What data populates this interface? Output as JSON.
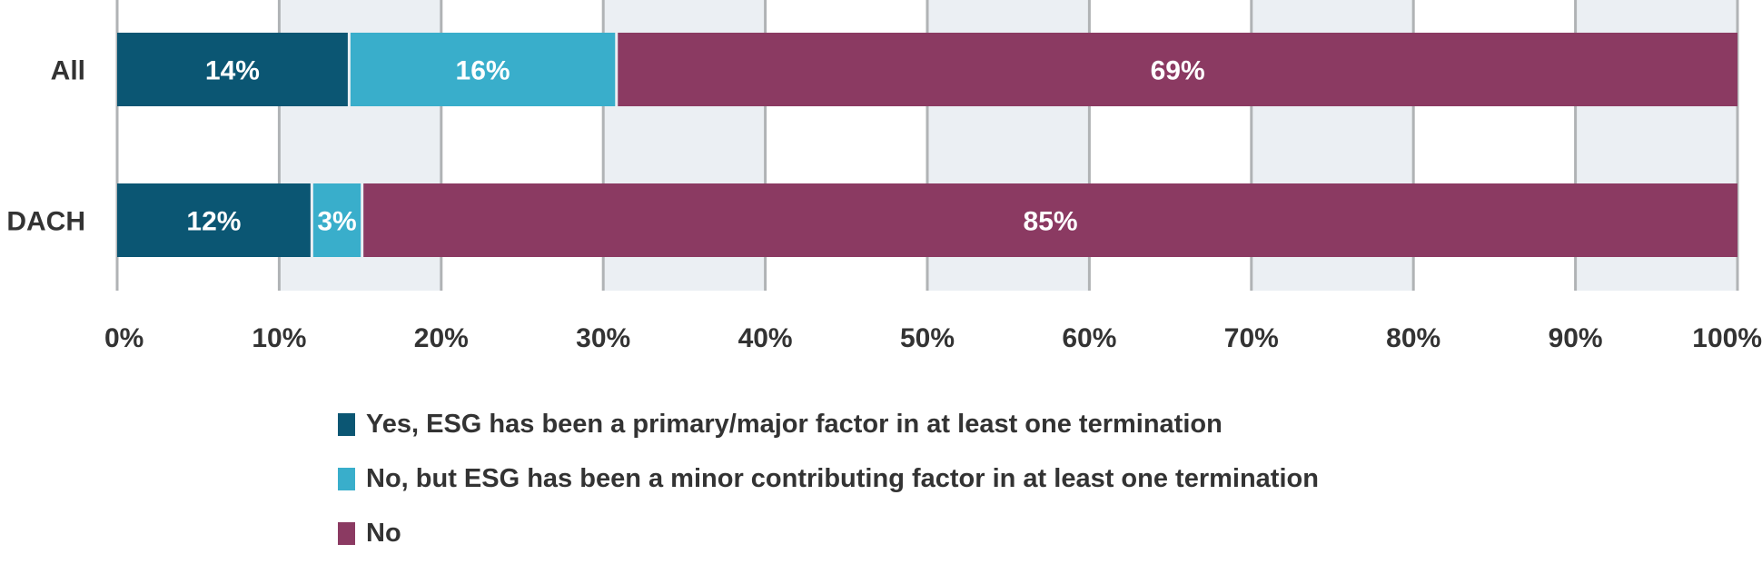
{
  "chart_data": {
    "type": "bar",
    "orientation": "horizontal",
    "stacked": true,
    "categories": [
      "All",
      "DACH"
    ],
    "series": [
      {
        "name": "Yes, ESG has been a primary/major factor in at least one termination",
        "values": [
          14.4,
          12.1
        ],
        "labels": [
          "14%",
          "12%"
        ],
        "color": "#0b5673"
      },
      {
        "name": "No, but ESG has been a minor contributing factor in at least one termination",
        "values": [
          16.5,
          3.1
        ],
        "labels": [
          "16%",
          "3%"
        ],
        "color": "#39aecb"
      },
      {
        "name": "No",
        "values": [
          69.1,
          84.8
        ],
        "labels": [
          "69%",
          "85%"
        ],
        "color": "#8b3a62"
      }
    ],
    "x_ticks": [
      "0%",
      "10%",
      "20%",
      "30%",
      "40%",
      "50%",
      "60%",
      "70%",
      "80%",
      "90%",
      "100%"
    ],
    "xlim": [
      0,
      100
    ],
    "grid": true,
    "legend_position": "bottom",
    "band_colors": [
      "#ffffff",
      "#ebeff3"
    ],
    "grid_color": "#b0b3b5",
    "text_color": "#333333"
  }
}
